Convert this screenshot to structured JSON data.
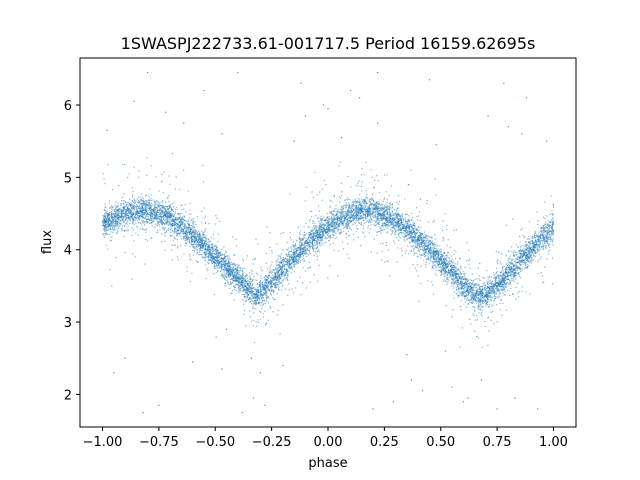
{
  "chart_data": {
    "type": "scatter",
    "title": "1SWASPJ222733.61-001717.5 Period 16159.62695s",
    "xlabel": "phase",
    "ylabel": "flux",
    "xlim": [
      -1.1,
      1.1
    ],
    "ylim": [
      1.55,
      6.65
    ],
    "xticks": [
      -1.0,
      -0.75,
      -0.5,
      -0.25,
      0.0,
      0.25,
      0.5,
      0.75,
      1.0
    ],
    "xtick_labels": [
      "−1.00",
      "−0.75",
      "−0.50",
      "−0.25",
      "0.00",
      "0.25",
      "0.50",
      "0.75",
      "1.00"
    ],
    "yticks": [
      2,
      3,
      4,
      5,
      6
    ],
    "ytick_labels": [
      "2",
      "3",
      "4",
      "5",
      "6"
    ],
    "grid": false,
    "marker_color": "#1f77b4",
    "trend": {
      "x": [
        -1.0,
        -0.9,
        -0.8,
        -0.7,
        -0.6,
        -0.5,
        -0.4,
        -0.32,
        -0.25,
        -0.15,
        -0.05,
        0.05,
        0.15,
        0.2,
        0.3,
        0.4,
        0.5,
        0.6,
        0.68,
        0.75,
        0.85,
        0.95,
        1.0
      ],
      "y": [
        4.35,
        4.5,
        4.55,
        4.45,
        4.2,
        3.9,
        3.6,
        3.35,
        3.55,
        3.9,
        4.2,
        4.42,
        4.55,
        4.55,
        4.4,
        4.15,
        3.85,
        3.5,
        3.35,
        3.5,
        3.85,
        4.15,
        4.3
      ]
    },
    "outliers": {
      "x": [
        -0.98,
        -0.86,
        -0.8,
        -0.72,
        -0.64,
        -0.55,
        -0.47,
        -0.4,
        -0.33,
        -0.28,
        -0.2,
        -0.1,
        -0.02,
        0.06,
        0.14,
        0.22,
        0.29,
        0.37,
        0.45,
        0.55,
        0.62,
        0.71,
        0.78,
        0.86,
        0.93,
        -0.95,
        -0.9,
        -0.75,
        -0.6,
        -0.45,
        -0.38,
        -0.3,
        -0.15,
        0.0,
        0.1,
        0.2,
        0.35,
        0.48,
        0.6,
        0.68,
        0.8,
        0.88,
        0.97,
        -0.82,
        -0.47,
        0.22,
        0.52,
        0.83,
        -0.34,
        0.66,
        -0.12,
        0.42,
        0.75
      ],
      "y": [
        5.65,
        6.05,
        6.45,
        5.9,
        5.75,
        6.2,
        5.6,
        6.45,
        1.95,
        1.85,
        2.4,
        5.85,
        6.0,
        5.55,
        6.1,
        5.75,
        1.9,
        2.2,
        6.35,
        2.1,
        1.95,
        5.85,
        6.3,
        5.6,
        1.8,
        2.3,
        2.5,
        1.85,
        2.45,
        2.9,
        1.75,
        2.3,
        5.5,
        5.95,
        6.2,
        1.8,
        2.55,
        5.45,
        1.9,
        2.2,
        5.7,
        6.1,
        5.5,
        1.75,
        2.35,
        6.45,
        2.6,
        1.95,
        2.5,
        2.8,
        6.3,
        2.05,
        1.8
      ]
    }
  }
}
